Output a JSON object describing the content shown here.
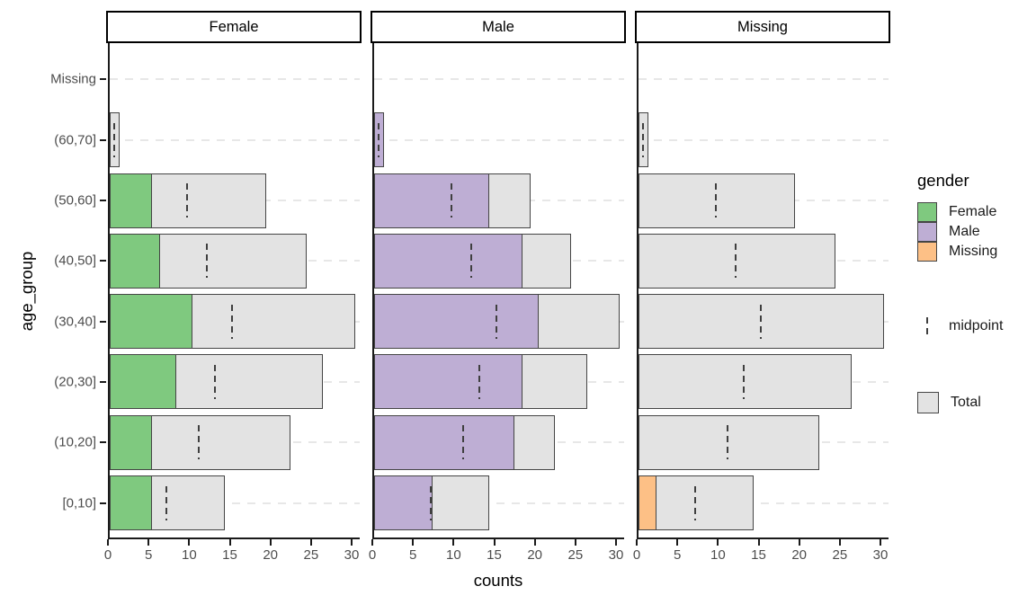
{
  "chart_data": {
    "type": "bar",
    "orientation": "horizontal",
    "title": "",
    "xlabel": "counts",
    "ylabel": "age_group",
    "xlim": [
      0,
      30
    ],
    "x_ticks": [
      0,
      5,
      10,
      15,
      20,
      25,
      30
    ],
    "grid": {
      "horizontal_dashed": true,
      "vertical": false
    },
    "legend_position": "right",
    "facet_variable": "gender",
    "categories_top_to_bottom": [
      "Missing",
      "(60,70]",
      "(50,60]",
      "(40,50]",
      "(30,40]",
      "(20,30]",
      "(10,20]",
      "[0,10]"
    ],
    "total_per_category": [
      0,
      1,
      19,
      24,
      30,
      26,
      22,
      14
    ],
    "midpoint_per_category": [
      null,
      0.5,
      9.5,
      12,
      15,
      13,
      11,
      7
    ],
    "facets": [
      {
        "label": "Female",
        "color": "#7FC97F",
        "counts": [
          0,
          0,
          5,
          6,
          10,
          8,
          5,
          5
        ]
      },
      {
        "label": "Male",
        "color": "#BEAED4",
        "counts": [
          0,
          1,
          14,
          18,
          20,
          18,
          17,
          7
        ]
      },
      {
        "label": "Missing",
        "color": "#FDC086",
        "counts": [
          0,
          0,
          0,
          0,
          0,
          0,
          0,
          2
        ]
      }
    ]
  },
  "legend": {
    "title": "gender",
    "entries": [
      {
        "label": "Female",
        "color": "#7FC97F"
      },
      {
        "label": "Male",
        "color": "#BEAED4"
      },
      {
        "label": "Missing",
        "color": "#FDC086"
      }
    ],
    "midpoint_label": "midpoint",
    "total_label": "Total",
    "total_color": "#E3E3E3"
  },
  "colors": {
    "total_fill": "#E3E3E3",
    "bar_border": "#454545",
    "gridline": "#E7E7E7",
    "axis_text": "#4D4D4D",
    "axis_line": "#1A1A1A",
    "strip_bg": "#FFFFFF",
    "strip_border": "#000000"
  }
}
